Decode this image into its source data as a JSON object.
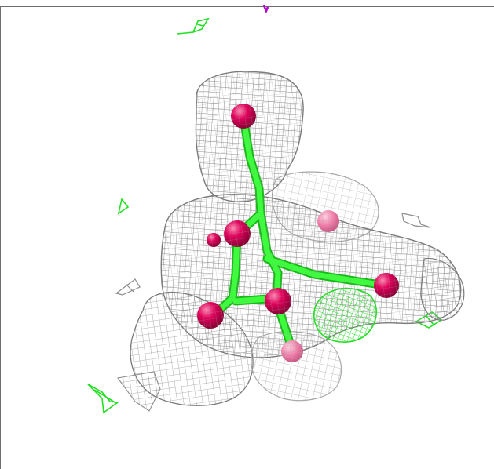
{
  "scene": {
    "kind": "molecular-viewer-electron-density",
    "background": "#ffffff",
    "colors": {
      "mesh": "#8c8c8c",
      "mesh_light": "#b4b4b4",
      "bond": "#2cff2c",
      "bond_dark": "#18c018",
      "atom": "#e0005a",
      "atom_highlight": "#ff7aa8",
      "frame": "#6e6e6e",
      "magenta_fragment": "#b000c8"
    },
    "icons": [
      "mesh-density-icon",
      "ball-and-stick-icon",
      "green-mesh-fragment-icon"
    ]
  }
}
